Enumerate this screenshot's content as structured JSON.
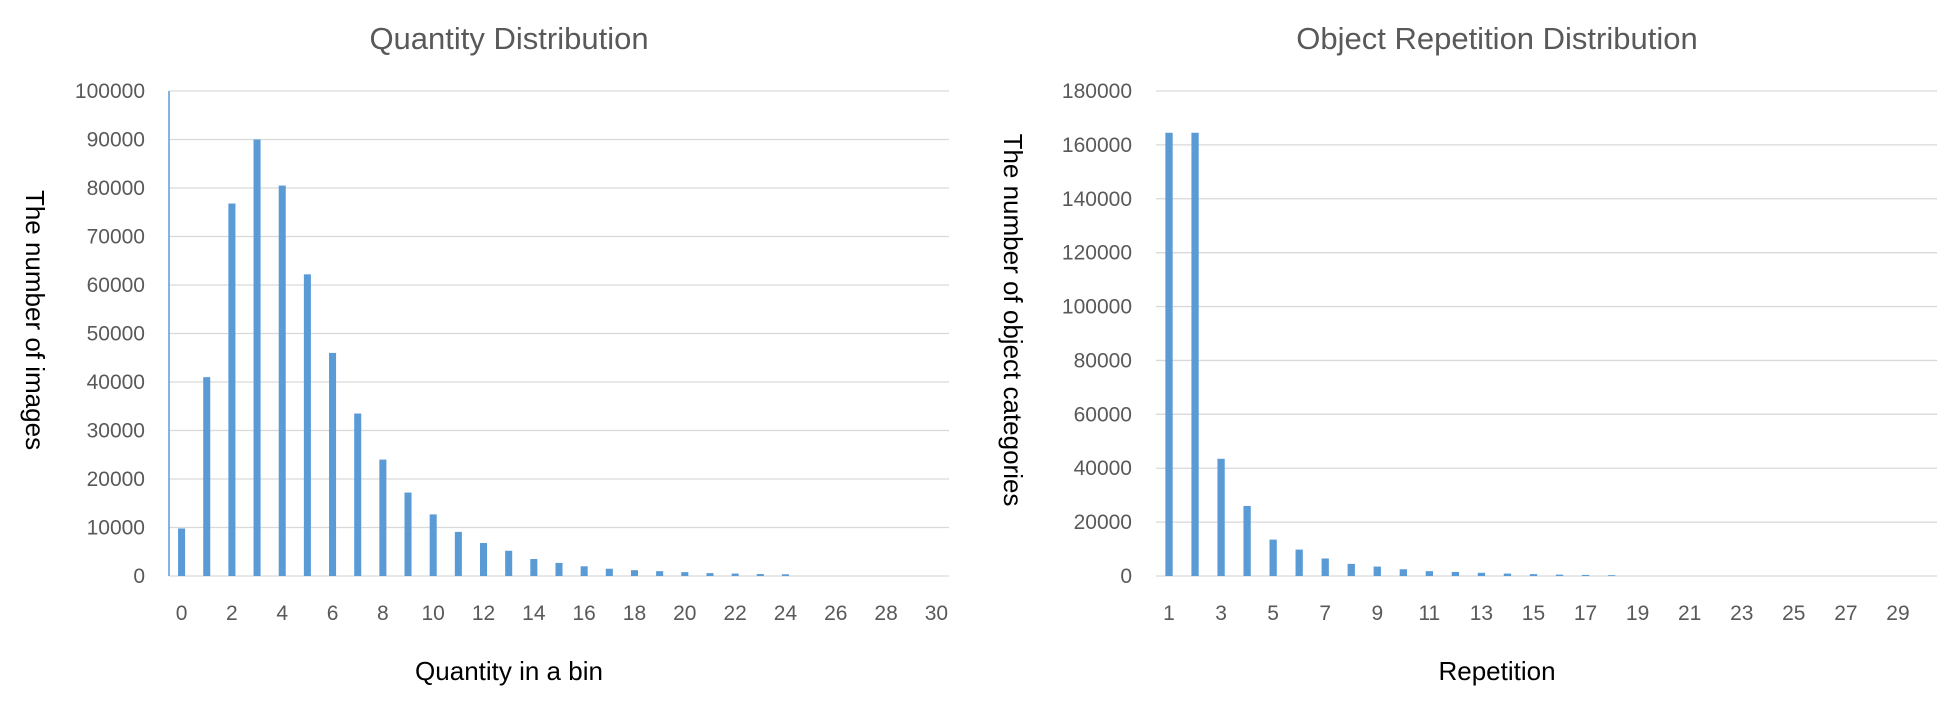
{
  "colors": {
    "bar": "#5b9bd5",
    "grid": "#d9d9d9",
    "axis": "#5b9bd5",
    "text": "#595959"
  },
  "chart_data": [
    {
      "type": "bar",
      "title": "Quantity Distribution",
      "xlabel": "Quantity in a bin",
      "ylabel": "The number of images",
      "ylim": [
        0,
        100000
      ],
      "yticks": [
        0,
        10000,
        20000,
        30000,
        40000,
        50000,
        60000,
        70000,
        80000,
        90000,
        100000
      ],
      "grid": true,
      "legend": "none",
      "categories": [
        0,
        1,
        2,
        3,
        4,
        5,
        6,
        7,
        8,
        9,
        10,
        11,
        12,
        13,
        14,
        15,
        16,
        17,
        18,
        19,
        20,
        21,
        22,
        23,
        24,
        25,
        26,
        27,
        28,
        29,
        30
      ],
      "xtick_labels": [
        "0",
        "2",
        "4",
        "6",
        "8",
        "10",
        "12",
        "14",
        "16",
        "18",
        "20",
        "22",
        "24",
        "26",
        "28",
        "30"
      ],
      "values": [
        9800,
        41000,
        76800,
        90000,
        80500,
        62200,
        46000,
        33500,
        24000,
        17200,
        12700,
        9100,
        6800,
        5200,
        3500,
        2700,
        2000,
        1500,
        1200,
        1000,
        800,
        600,
        500,
        400,
        350,
        0,
        0,
        0,
        0,
        0,
        0
      ]
    },
    {
      "type": "bar",
      "title": "Object Repetition Distribution",
      "xlabel": "Repetition",
      "ylabel": "The number of object categories",
      "ylim": [
        0,
        180000
      ],
      "yticks": [
        0,
        20000,
        40000,
        60000,
        80000,
        100000,
        120000,
        140000,
        160000,
        180000
      ],
      "grid": true,
      "legend": "none",
      "categories": [
        1,
        2,
        3,
        4,
        5,
        6,
        7,
        8,
        9,
        10,
        11,
        12,
        13,
        14,
        15,
        16,
        17,
        18,
        19,
        20,
        21,
        22,
        23,
        24,
        25,
        26,
        27,
        28,
        29,
        30
      ],
      "xtick_labels": [
        "1",
        "3",
        "5",
        "7",
        "9",
        "11",
        "13",
        "15",
        "17",
        "19",
        "21",
        "23",
        "25",
        "27",
        "29"
      ],
      "values": [
        164500,
        164500,
        43500,
        26000,
        13500,
        9800,
        6500,
        4500,
        3500,
        2500,
        1800,
        1500,
        1200,
        900,
        700,
        500,
        400,
        300,
        0,
        0,
        0,
        0,
        0,
        0,
        0,
        0,
        0,
        0,
        0,
        0
      ]
    }
  ]
}
